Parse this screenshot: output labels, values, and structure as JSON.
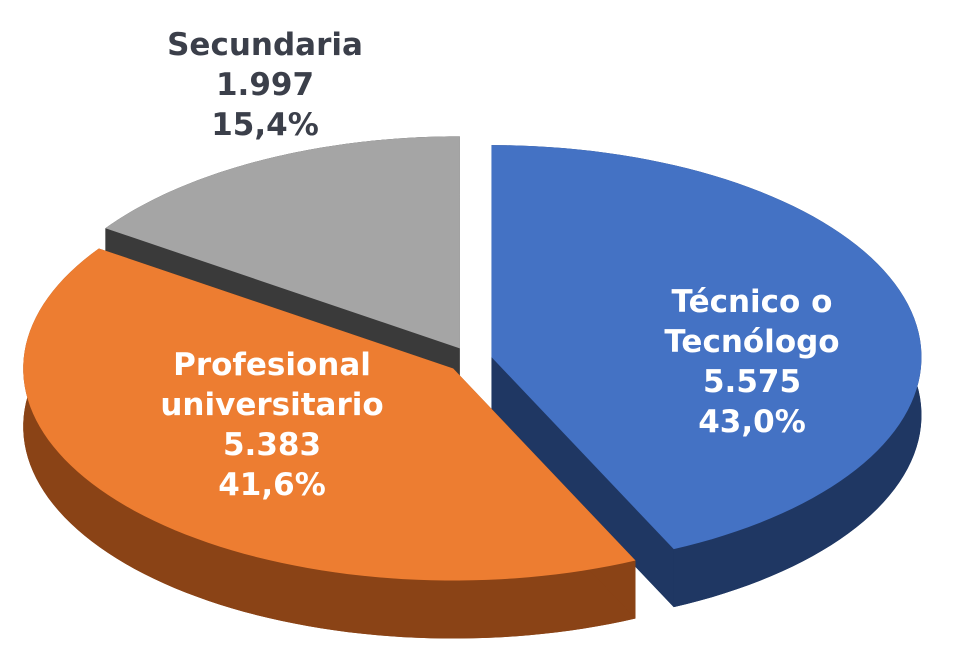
{
  "chart_data": {
    "type": "pie",
    "categories": [
      "Técnico o Tecnólogo",
      "Profesional universitario",
      "Secundaria"
    ],
    "values": [
      5575,
      5383,
      1997
    ],
    "value_labels": [
      "5.575",
      "5.383",
      "1.997"
    ],
    "percentages": [
      43.0,
      41.6,
      15.4
    ],
    "percentage_labels": [
      "43,0%",
      "41,6%",
      "15,4%"
    ],
    "colors": [
      "#4472c4",
      "#ed7d31",
      "#a5a5a5"
    ],
    "side_colors": [
      "#1f3763",
      "#8a4316",
      "#3a3a3a"
    ]
  }
}
